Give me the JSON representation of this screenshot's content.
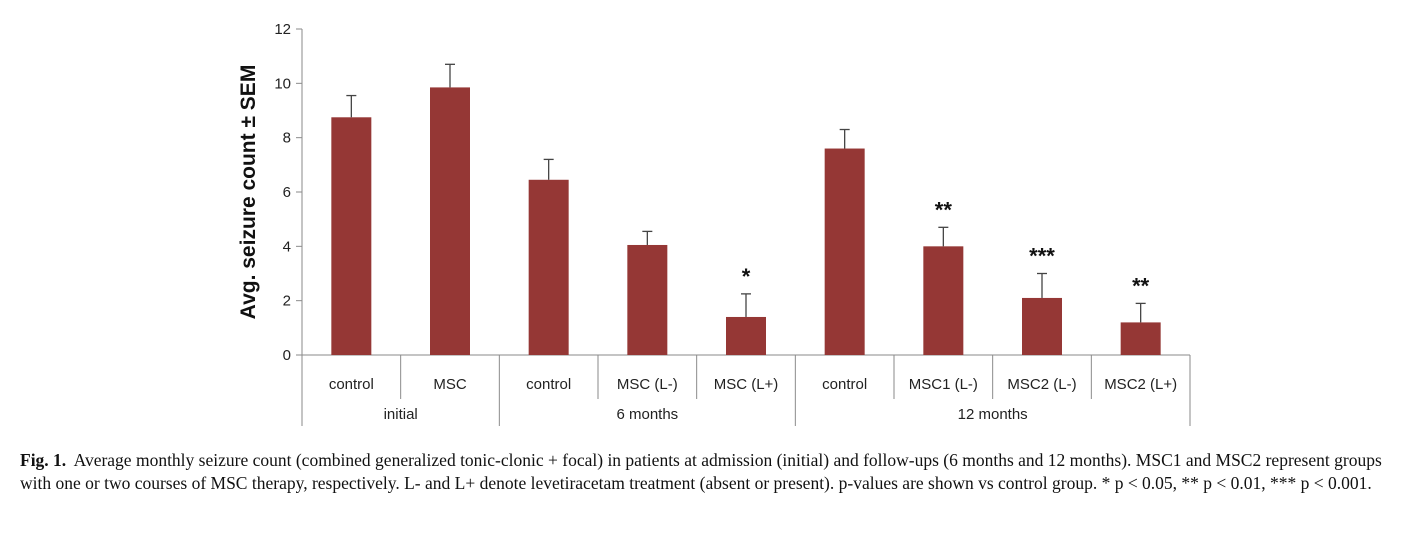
{
  "chart_data": {
    "type": "bar",
    "ylabel": "Avg. seizure count ± SEM",
    "ylim": [
      0,
      12
    ],
    "yticks": [
      0,
      2,
      4,
      6,
      8,
      10,
      12
    ],
    "bar_color": "#953735",
    "groups": [
      {
        "name": "initial",
        "categories": [
          "control",
          "MSC"
        ]
      },
      {
        "name": "6 months",
        "categories": [
          "control",
          "MSC (L-)",
          "MSC (L+)"
        ]
      },
      {
        "name": "12 months",
        "categories": [
          "control",
          "MSC1 (L-)",
          "MSC2 (L-)",
          "MSC2 (L+)"
        ]
      }
    ],
    "categories": [
      "control",
      "MSC",
      "control",
      "MSC (L-)",
      "MSC (L+)",
      "control",
      "MSC1 (L-)",
      "MSC2 (L-)",
      "MSC2 (L+)"
    ],
    "values": [
      8.75,
      9.85,
      6.45,
      4.05,
      1.4,
      7.6,
      4.0,
      2.1,
      1.2
    ],
    "errors": [
      0.8,
      0.85,
      0.75,
      0.5,
      0.85,
      0.7,
      0.7,
      0.9,
      0.7
    ],
    "significance": [
      "",
      "",
      "",
      "",
      "*",
      "",
      "**",
      "***",
      "**"
    ]
  },
  "caption": {
    "label": "Fig. 1.",
    "text": "Average monthly seizure count (combined generalized tonic-clonic + focal) in patients at admission (initial) and follow-ups (6 months and 12 months). MSC1 and MSC2 represent groups with one or two courses of MSC therapy, respectively. L- and L+ denote levetiracetam treatment (absent or present). p-values are shown vs control group. * p < 0.05, ** p < 0.01, *** p < 0.001."
  }
}
